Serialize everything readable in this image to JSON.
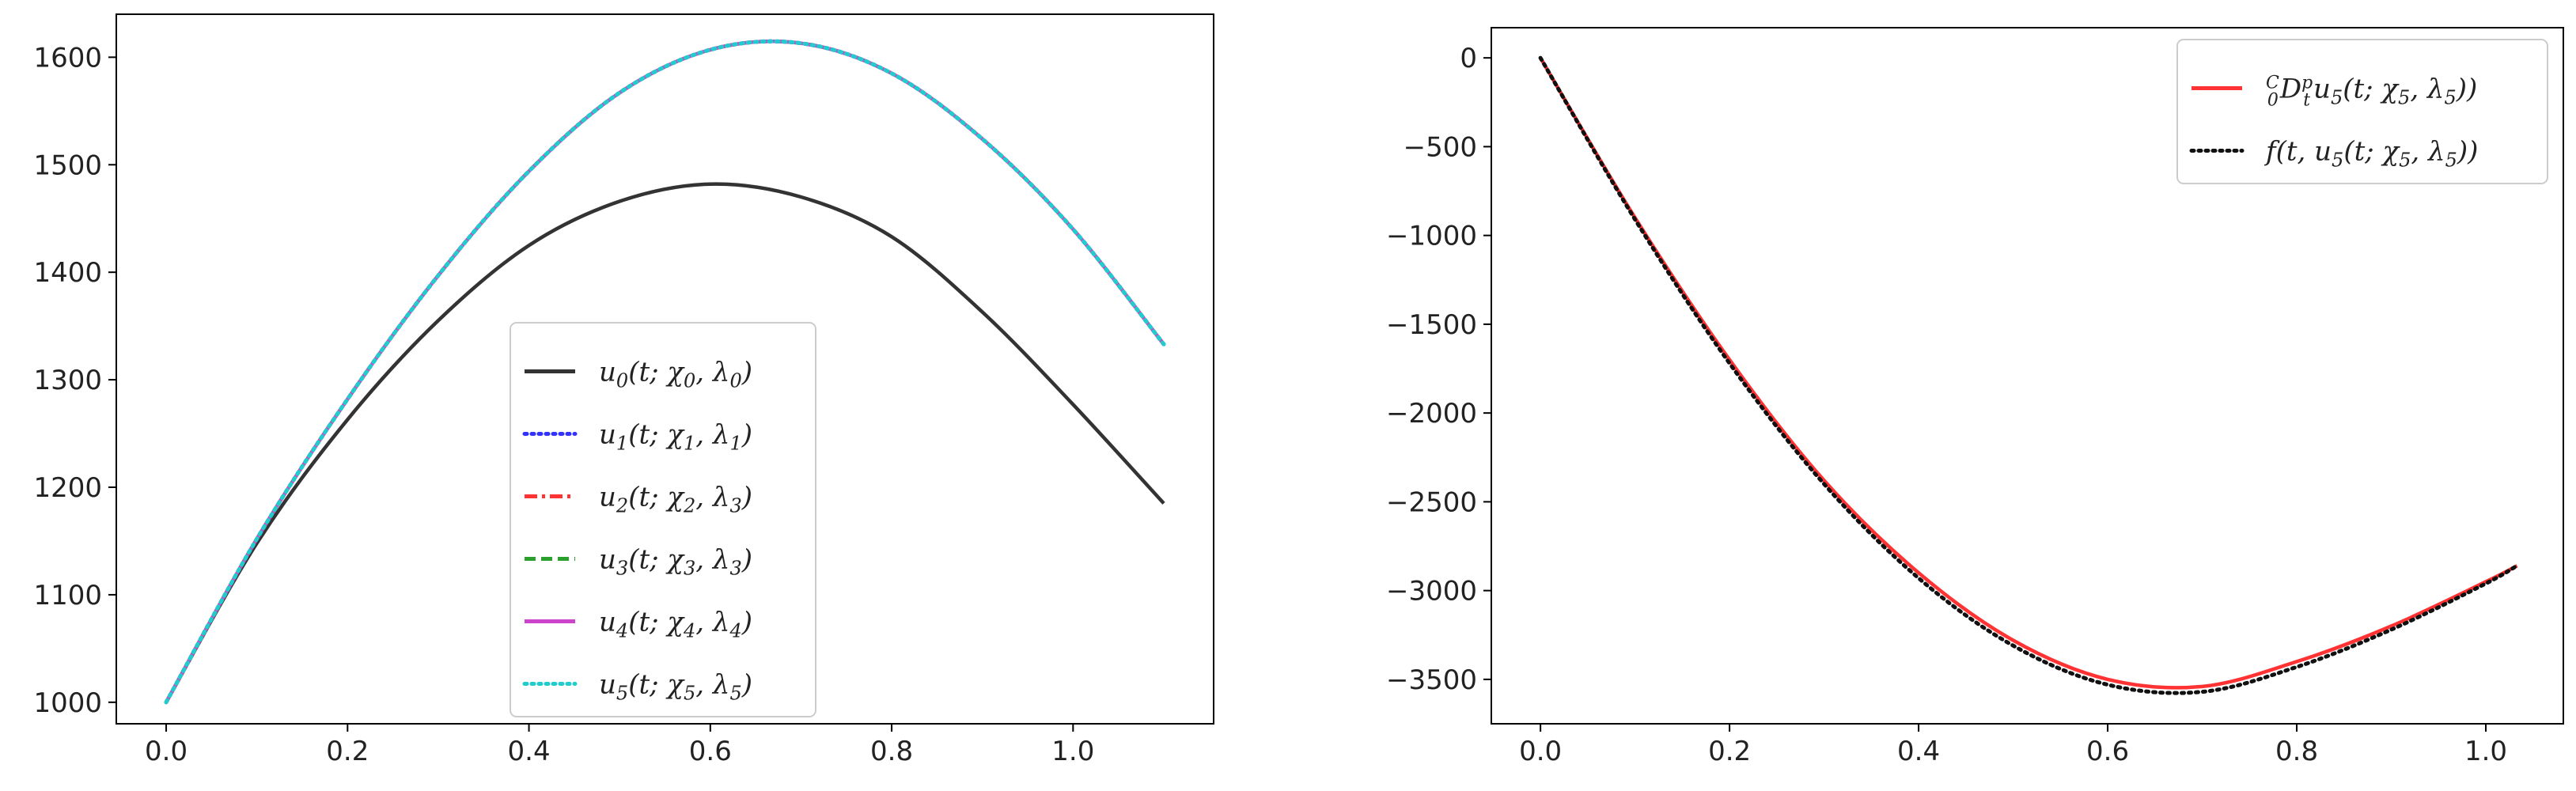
{
  "chart_data": [
    {
      "type": "line",
      "title": "",
      "xlabel": "",
      "ylabel": "",
      "xlim": [
        -0.055,
        1.155
      ],
      "ylim": [
        980,
        1640
      ],
      "xticks": [
        0.0,
        0.2,
        0.4,
        0.6,
        0.8,
        1.0
      ],
      "xtick_labels": [
        "0.0",
        "0.2",
        "0.4",
        "0.6",
        "0.8",
        "1.0"
      ],
      "yticks": [
        1000,
        1100,
        1200,
        1300,
        1400,
        1500,
        1600
      ],
      "ytick_labels": [
        "1000",
        "1100",
        "1200",
        "1300",
        "1400",
        "1500",
        "1600"
      ],
      "grid": false,
      "legend_position": "lower-center",
      "series": [
        {
          "name": "u0(t; χ0, λ0)",
          "label": {
            "b": "u",
            "s": "0",
            "a": "(t; χ",
            "s2": "0",
            "c": ", λ",
            "s3": "0",
            "d": ")"
          },
          "color": "#333333",
          "style": "solid",
          "x": [
            0.0,
            0.1,
            0.2,
            0.3,
            0.4,
            0.5,
            0.6,
            0.7,
            0.8,
            0.9,
            1.0,
            1.1
          ],
          "y": [
            1000,
            1148,
            1263,
            1355,
            1425,
            1466,
            1482,
            1470,
            1433,
            1363,
            1277,
            1185
          ]
        },
        {
          "name": "u1(t; χ1, λ1)",
          "label": {
            "b": "u",
            "s": "1",
            "a": "(t; χ",
            "s2": "1",
            "c": ", λ",
            "s3": "1",
            "d": ")"
          },
          "color": "#3333ff",
          "style": "dotted",
          "x": [
            0.0,
            0.1,
            0.2,
            0.3,
            0.4,
            0.5,
            0.6,
            0.7,
            0.8,
            0.9,
            1.0,
            1.1
          ],
          "y": [
            1000,
            1152,
            1282,
            1397,
            1494,
            1567,
            1607,
            1613,
            1585,
            1524,
            1440,
            1333
          ]
        },
        {
          "name": "u2(t; χ2, λ3)",
          "label": {
            "b": "u",
            "s": "2",
            "a": "(t; χ",
            "s2": "2",
            "c": ", λ",
            "s3": "3",
            "d": ")"
          },
          "color": "#ff3333",
          "style": "dashdot",
          "x": [
            0.0,
            0.1,
            0.2,
            0.3,
            0.4,
            0.5,
            0.6,
            0.7,
            0.8,
            0.9,
            1.0,
            1.1
          ],
          "y": [
            1000,
            1152,
            1282,
            1397,
            1494,
            1567,
            1607,
            1613,
            1585,
            1524,
            1440,
            1333
          ]
        },
        {
          "name": "u3(t; χ3, λ3)",
          "label": {
            "b": "u",
            "s": "3",
            "a": "(t; χ",
            "s2": "3",
            "c": ", λ",
            "s3": "3",
            "d": ")"
          },
          "color": "#2ca02c",
          "style": "dashed",
          "x": [
            0.0,
            0.1,
            0.2,
            0.3,
            0.4,
            0.5,
            0.6,
            0.7,
            0.8,
            0.9,
            1.0,
            1.1
          ],
          "y": [
            1000,
            1152,
            1282,
            1397,
            1494,
            1567,
            1607,
            1613,
            1585,
            1524,
            1440,
            1333
          ]
        },
        {
          "name": "u4(t; χ4, λ4)",
          "label": {
            "b": "u",
            "s": "4",
            "a": "(t; χ",
            "s2": "4",
            "c": ", λ",
            "s3": "4",
            "d": ")"
          },
          "color": "#cc44cc",
          "style": "solid",
          "x": [
            0.0,
            0.1,
            0.2,
            0.3,
            0.4,
            0.5,
            0.6,
            0.7,
            0.8,
            0.9,
            1.0,
            1.1
          ],
          "y": [
            1000,
            1152,
            1282,
            1397,
            1494,
            1567,
            1607,
            1613,
            1585,
            1524,
            1440,
            1333
          ]
        },
        {
          "name": "u5(t; χ5, λ5)",
          "label": {
            "b": "u",
            "s": "5",
            "a": "(t; χ",
            "s2": "5",
            "c": ", λ",
            "s3": "5",
            "d": ")"
          },
          "color": "#22cccc",
          "style": "dotted",
          "x": [
            0.0,
            0.1,
            0.2,
            0.3,
            0.4,
            0.5,
            0.6,
            0.7,
            0.8,
            0.9,
            1.0,
            1.1
          ],
          "y": [
            1000,
            1152,
            1282,
            1397,
            1494,
            1567,
            1607,
            1613,
            1585,
            1524,
            1440,
            1333
          ]
        }
      ]
    },
    {
      "type": "line",
      "title": "",
      "xlabel": "",
      "ylabel": "",
      "xlim": [
        -0.052,
        1.082
      ],
      "ylim": [
        -3750,
        170
      ],
      "xticks": [
        0.0,
        0.2,
        0.4,
        0.6,
        0.8,
        1.0
      ],
      "xtick_labels": [
        "0.0",
        "0.2",
        "0.4",
        "0.6",
        "0.8",
        "1.0"
      ],
      "yticks": [
        0,
        -500,
        -1000,
        -1500,
        -2000,
        -2500,
        -3000,
        -3500
      ],
      "ytick_labels": [
        "0",
        "−500",
        "−1000",
        "−1500",
        "−2000",
        "−2500",
        "−3000",
        "−3500"
      ],
      "grid": false,
      "legend_position": "upper-right",
      "series": [
        {
          "name": "C0Dtp u5(t; χ5, λ5))",
          "label": {
            "pre": "D",
            "b": "u",
            "s": "5",
            "a": "(t; χ",
            "s2": "5",
            "c": ", λ",
            "s3": "5",
            "d": "))"
          },
          "color": "#ff3333",
          "style": "solid",
          "x": [
            0.0,
            0.1,
            0.2,
            0.3,
            0.4,
            0.5,
            0.6,
            0.7,
            0.8,
            0.9,
            1.0,
            1.033
          ],
          "y": [
            0,
            -900,
            -1700,
            -2380,
            -2900,
            -3280,
            -3500,
            -3540,
            -3400,
            -3200,
            -2950,
            -2860
          ]
        },
        {
          "name": "f(t, u5(t; χ5, λ5))",
          "label": {
            "b": "f(t, u",
            "s": "5",
            "a": "(t; χ",
            "s2": "5",
            "c": ", λ",
            "s3": "5",
            "d": "))"
          },
          "color": "#111111",
          "style": "dotted",
          "x": [
            0.0,
            0.1,
            0.2,
            0.3,
            0.4,
            0.5,
            0.6,
            0.7,
            0.8,
            0.9,
            1.0,
            1.033
          ],
          "y": [
            0,
            -910,
            -1720,
            -2400,
            -2930,
            -3310,
            -3530,
            -3570,
            -3430,
            -3220,
            -2960,
            -2860
          ]
        }
      ]
    }
  ]
}
